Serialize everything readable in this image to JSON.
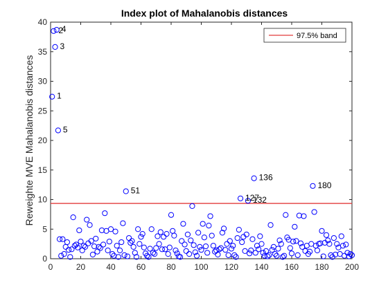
{
  "chart_data": {
    "type": "scatter",
    "title": "Index plot of Mahalanobis distances",
    "xlabel": "",
    "ylabel": "Reweighte MVE Mahalanobis distances",
    "xlim": [
      0,
      200
    ],
    "ylim": [
      0,
      40
    ],
    "xticks": [
      0,
      20,
      40,
      60,
      80,
      100,
      120,
      140,
      160,
      180,
      200
    ],
    "yticks": [
      0,
      5,
      10,
      15,
      20,
      25,
      30,
      35,
      40
    ],
    "grid": false,
    "legend": {
      "position": "top-right",
      "entries": [
        {
          "label": "97.5% band",
          "color": "#e23a3a"
        }
      ]
    },
    "band": {
      "y": 9.35,
      "label": "97.5% band",
      "color": "#e23a3a"
    },
    "marker_color": "#0000ff",
    "points": [
      [
        1,
        27.4
      ],
      [
        2,
        38.5
      ],
      [
        3,
        35.8
      ],
      [
        4,
        38.7
      ],
      [
        5,
        21.7
      ],
      [
        6,
        3.3
      ],
      [
        7,
        0.5
      ],
      [
        8,
        3.3
      ],
      [
        9,
        0.8
      ],
      [
        10,
        2.0
      ],
      [
        11,
        2.8
      ],
      [
        12,
        1.5
      ],
      [
        13,
        0.3
      ],
      [
        14,
        1.6
      ],
      [
        15,
        7.0
      ],
      [
        16,
        2.2
      ],
      [
        17,
        2.4
      ],
      [
        18,
        1.9
      ],
      [
        19,
        4.8
      ],
      [
        20,
        2.9
      ],
      [
        21,
        1.4
      ],
      [
        22,
        2.2
      ],
      [
        23,
        2.0
      ],
      [
        24,
        6.6
      ],
      [
        25,
        2.6
      ],
      [
        26,
        5.7
      ],
      [
        27,
        3.0
      ],
      [
        28,
        0.7
      ],
      [
        29,
        2.1
      ],
      [
        30,
        3.4
      ],
      [
        31,
        1.2
      ],
      [
        32,
        2.0
      ],
      [
        33,
        1.8
      ],
      [
        34,
        4.8
      ],
      [
        35,
        2.4
      ],
      [
        36,
        7.7
      ],
      [
        37,
        4.7
      ],
      [
        38,
        1.4
      ],
      [
        39,
        2.9
      ],
      [
        40,
        5.0
      ],
      [
        41,
        0.8
      ],
      [
        42,
        0.5
      ],
      [
        43,
        4.6
      ],
      [
        44,
        2.2
      ],
      [
        45,
        0.3
      ],
      [
        46,
        1.4
      ],
      [
        47,
        2.8
      ],
      [
        48,
        6.0
      ],
      [
        49,
        0.6
      ],
      [
        50,
        11.4
      ],
      [
        51,
        0.4
      ],
      [
        52,
        3.5
      ],
      [
        53,
        2.7
      ],
      [
        54,
        3.0
      ],
      [
        55,
        2.0
      ],
      [
        56,
        1.0
      ],
      [
        57,
        0.3
      ],
      [
        58,
        5.0
      ],
      [
        59,
        2.5
      ],
      [
        60,
        3.7
      ],
      [
        61,
        4.2
      ],
      [
        62,
        1.9
      ],
      [
        63,
        0.9
      ],
      [
        64,
        0.5
      ],
      [
        65,
        0.3
      ],
      [
        66,
        1.7
      ],
      [
        67,
        5.0
      ],
      [
        68,
        1.0
      ],
      [
        69,
        0.8
      ],
      [
        70,
        1.8
      ],
      [
        71,
        3.8
      ],
      [
        72,
        2.5
      ],
      [
        73,
        4.5
      ],
      [
        74,
        1.6
      ],
      [
        75,
        3.7
      ],
      [
        76,
        1.6
      ],
      [
        77,
        4.2
      ],
      [
        78,
        0.8
      ],
      [
        79,
        1.9
      ],
      [
        80,
        7.4
      ],
      [
        81,
        4.7
      ],
      [
        82,
        3.9
      ],
      [
        83,
        1.4
      ],
      [
        84,
        0.9
      ],
      [
        85,
        0.4
      ],
      [
        86,
        0.3
      ],
      [
        87,
        3.0
      ],
      [
        88,
        5.9
      ],
      [
        89,
        2.4
      ],
      [
        90,
        1.3
      ],
      [
        91,
        4.1
      ],
      [
        92,
        0.8
      ],
      [
        93,
        3.1
      ],
      [
        94,
        8.9
      ],
      [
        95,
        2.3
      ],
      [
        96,
        1.1
      ],
      [
        97,
        0.5
      ],
      [
        98,
        4.4
      ],
      [
        99,
        2.0
      ],
      [
        100,
        1.5
      ],
      [
        101,
        5.9
      ],
      [
        102,
        3.6
      ],
      [
        103,
        2.1
      ],
      [
        104,
        1.0
      ],
      [
        105,
        5.6
      ],
      [
        106,
        7.2
      ],
      [
        107,
        3.9
      ],
      [
        108,
        2.2
      ],
      [
        109,
        1.2
      ],
      [
        110,
        1.4
      ],
      [
        111,
        0.7
      ],
      [
        112,
        1.6
      ],
      [
        113,
        1.8
      ],
      [
        114,
        4.4
      ],
      [
        115,
        5.1
      ],
      [
        116,
        1.5
      ],
      [
        117,
        2.5
      ],
      [
        118,
        0.6
      ],
      [
        119,
        3.0
      ],
      [
        120,
        1.7
      ],
      [
        121,
        2.2
      ],
      [
        122,
        0.6
      ],
      [
        123,
        0.3
      ],
      [
        124,
        3.5
      ],
      [
        125,
        4.9
      ],
      [
        126,
        10.2
      ],
      [
        127,
        2.8
      ],
      [
        128,
        3.7
      ],
      [
        129,
        1.3
      ],
      [
        130,
        4.1
      ],
      [
        131,
        9.8
      ],
      [
        132,
        0.9
      ],
      [
        133,
        1.4
      ],
      [
        134,
        3.3
      ],
      [
        135,
        13.6
      ],
      [
        136,
        1.0
      ],
      [
        137,
        2.2
      ],
      [
        138,
        1.6
      ],
      [
        139,
        3.8
      ],
      [
        140,
        2.5
      ],
      [
        141,
        1.0
      ],
      [
        142,
        0.5
      ],
      [
        143,
        1.3
      ],
      [
        144,
        0.4
      ],
      [
        145,
        0.6
      ],
      [
        146,
        5.7
      ],
      [
        147,
        1.5
      ],
      [
        148,
        2.0
      ],
      [
        149,
        0.8
      ],
      [
        150,
        0.5
      ],
      [
        151,
        1.7
      ],
      [
        152,
        3.1
      ],
      [
        153,
        2.5
      ],
      [
        154,
        0.3
      ],
      [
        155,
        0.5
      ],
      [
        156,
        7.4
      ],
      [
        157,
        3.6
      ],
      [
        158,
        3.2
      ],
      [
        159,
        1.8
      ],
      [
        160,
        0.9
      ],
      [
        161,
        2.9
      ],
      [
        162,
        5.4
      ],
      [
        163,
        3.0
      ],
      [
        164,
        0.6
      ],
      [
        165,
        7.3
      ],
      [
        166,
        2.6
      ],
      [
        167,
        2.0
      ],
      [
        168,
        7.2
      ],
      [
        169,
        1.3
      ],
      [
        170,
        2.2
      ],
      [
        171,
        0.8
      ],
      [
        172,
        1.2
      ],
      [
        173,
        2.5
      ],
      [
        174,
        12.3
      ],
      [
        175,
        7.9
      ],
      [
        176,
        2.2
      ],
      [
        177,
        1.4
      ],
      [
        178,
        2.5
      ],
      [
        179,
        2.6
      ],
      [
        180,
        4.7
      ],
      [
        181,
        0.4
      ],
      [
        182,
        2.7
      ],
      [
        183,
        4.0
      ],
      [
        184,
        3.1
      ],
      [
        185,
        2.5
      ],
      [
        186,
        0.6
      ],
      [
        187,
        0.3
      ],
      [
        188,
        3.5
      ],
      [
        189,
        0.7
      ],
      [
        190,
        2.5
      ],
      [
        191,
        1.9
      ],
      [
        192,
        0.8
      ],
      [
        193,
        3.8
      ],
      [
        194,
        2.2
      ],
      [
        195,
        0.5
      ],
      [
        196,
        2.4
      ],
      [
        197,
        1.0
      ],
      [
        198,
        0.4
      ],
      [
        199,
        0.8
      ],
      [
        200,
        0.6
      ]
    ],
    "annotations": [
      {
        "text": "1",
        "x": 1,
        "y": 27.4
      },
      {
        "text": "2",
        "x": 2,
        "y": 38.5
      },
      {
        "text": "4",
        "x": 4,
        "y": 38.7
      },
      {
        "text": "3",
        "x": 3,
        "y": 35.8
      },
      {
        "text": "5",
        "x": 5,
        "y": 21.7
      },
      {
        "text": "51",
        "x": 50,
        "y": 11.4
      },
      {
        "text": "136",
        "x": 135,
        "y": 13.6
      },
      {
        "text": "127",
        "x": 126,
        "y": 10.2
      },
      {
        "text": "132",
        "x": 131,
        "y": 9.8
      },
      {
        "text": "180",
        "x": 174,
        "y": 12.3
      }
    ]
  }
}
